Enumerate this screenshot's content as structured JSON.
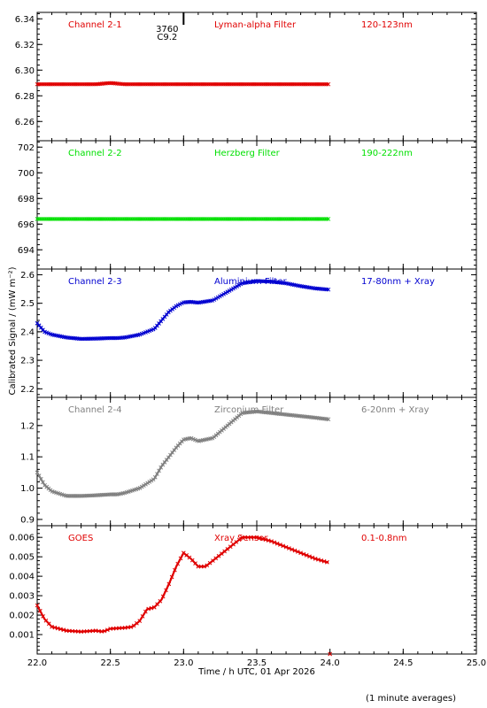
{
  "footnote": "(1 minute averages)",
  "annotation": {
    "line1": "3760",
    "line2": "C9.2",
    "x": 22.9
  },
  "chart_data": {
    "type": "scatter",
    "xlabel": "Time / h UTC, 01 Apr 2026",
    "ylabel": "Calibrated Signal / (mW m⁻²)",
    "xlim": [
      22.0,
      25.0
    ],
    "xticks": [
      22.0,
      22.5,
      23.0,
      23.5,
      24.0,
      24.5,
      25.0
    ],
    "xtick_labels": [
      "22.0",
      "22.5",
      "23.0",
      "23.5",
      "24.0",
      "24.5",
      "25.0"
    ],
    "panels": [
      {
        "channel": "Channel 2-1",
        "filter": "Lyman-alpha Filter",
        "band": "120-123nm",
        "color": "#e00000",
        "ylim": [
          6.245,
          6.345
        ],
        "yticks": [
          6.26,
          6.28,
          6.3,
          6.32,
          6.34
        ],
        "ytick_labels": [
          "6.26",
          "6.28",
          "6.30",
          "6.32",
          "6.34"
        ],
        "x": [
          22.0,
          22.4,
          22.5,
          22.6,
          23.0,
          23.5,
          23.99
        ],
        "y": [
          6.289,
          6.289,
          6.29,
          6.289,
          6.289,
          6.289,
          6.289
        ]
      },
      {
        "channel": "Channel 2-2",
        "filter": "Herzberg Filter",
        "band": "190-222nm",
        "color": "#00e000",
        "ylim": [
          692.5,
          702.5
        ],
        "yticks": [
          694,
          696,
          698,
          700,
          702
        ],
        "ytick_labels": [
          "694",
          "696",
          "698",
          "700",
          "702"
        ],
        "x": [
          22.0,
          23.0,
          23.99
        ],
        "y": [
          696.4,
          696.4,
          696.4
        ]
      },
      {
        "channel": "Channel 2-3",
        "filter": "Aluminium Filter",
        "band": "17-80nm + Xray",
        "color": "#0000d0",
        "ylim": [
          2.17,
          2.62
        ],
        "yticks": [
          2.2,
          2.3,
          2.4,
          2.5,
          2.6
        ],
        "ytick_labels": [
          "2.2",
          "2.3",
          "2.4",
          "2.5",
          "2.6"
        ],
        "x": [
          22.0,
          22.05,
          22.1,
          22.2,
          22.3,
          22.4,
          22.5,
          22.55,
          22.6,
          22.7,
          22.8,
          22.85,
          22.9,
          22.95,
          23.0,
          23.05,
          23.1,
          23.2,
          23.3,
          23.4,
          23.5,
          23.6,
          23.7,
          23.8,
          23.9,
          23.99
        ],
        "y": [
          2.43,
          2.4,
          2.39,
          2.38,
          2.375,
          2.376,
          2.378,
          2.378,
          2.38,
          2.39,
          2.41,
          2.44,
          2.47,
          2.49,
          2.503,
          2.505,
          2.502,
          2.51,
          2.54,
          2.57,
          2.578,
          2.576,
          2.57,
          2.56,
          2.552,
          2.548
        ]
      },
      {
        "channel": "Channel 2-4",
        "filter": "Zirconium Filter",
        "band": "6-20nm + Xray",
        "color": "#808080",
        "ylim": [
          0.88,
          1.29
        ],
        "yticks": [
          0.9,
          1.0,
          1.1,
          1.2
        ],
        "ytick_labels": [
          "0.9",
          "1.0",
          "1.1",
          "1.2"
        ],
        "x": [
          22.0,
          22.05,
          22.1,
          22.2,
          22.3,
          22.4,
          22.5,
          22.55,
          22.6,
          22.7,
          22.8,
          22.85,
          22.9,
          22.95,
          23.0,
          23.05,
          23.1,
          23.2,
          23.3,
          23.4,
          23.5,
          23.6,
          23.7,
          23.8,
          23.9,
          23.99
        ],
        "y": [
          1.05,
          1.01,
          0.99,
          0.975,
          0.975,
          0.977,
          0.98,
          0.98,
          0.985,
          1.0,
          1.03,
          1.07,
          1.1,
          1.13,
          1.155,
          1.16,
          1.15,
          1.16,
          1.2,
          1.24,
          1.245,
          1.24,
          1.235,
          1.23,
          1.225,
          1.22
        ]
      },
      {
        "channel": "GOES",
        "filter": "Xray Sensor",
        "band": "0.1-0.8nm",
        "color": "#e00000",
        "ylim": [
          0.0,
          0.0066
        ],
        "yticks": [
          0.001,
          0.002,
          0.003,
          0.004,
          0.005,
          0.006
        ],
        "ytick_labels": [
          "0.001",
          "0.002",
          "0.003",
          "0.004",
          "0.005",
          "0.006"
        ],
        "x": [
          22.0,
          22.05,
          22.1,
          22.2,
          22.3,
          22.4,
          22.45,
          22.5,
          22.6,
          22.65,
          22.7,
          22.75,
          22.8,
          22.85,
          22.9,
          22.95,
          23.0,
          23.05,
          23.1,
          23.15,
          23.2,
          23.3,
          23.4,
          23.5,
          23.6,
          23.7,
          23.8,
          23.9,
          23.99
        ],
        "y": [
          0.0025,
          0.0018,
          0.0014,
          0.0012,
          0.00115,
          0.0012,
          0.00115,
          0.0013,
          0.00135,
          0.0014,
          0.0017,
          0.0023,
          0.0024,
          0.0028,
          0.0036,
          0.0045,
          0.0052,
          0.0049,
          0.0045,
          0.0045,
          0.0048,
          0.0054,
          0.006,
          0.006,
          0.0058,
          0.0055,
          0.0052,
          0.0049,
          0.0047
        ]
      }
    ]
  }
}
